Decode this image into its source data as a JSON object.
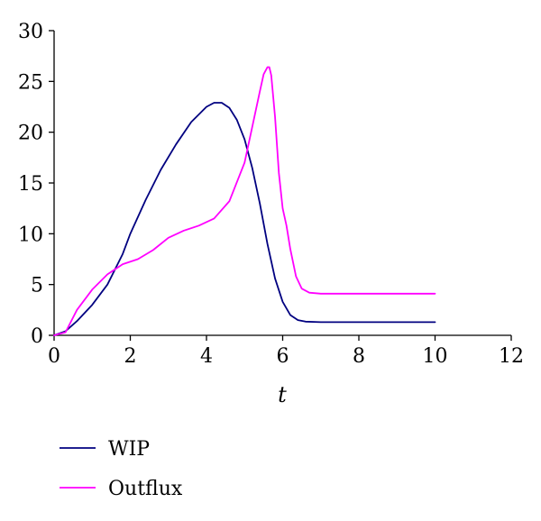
{
  "chart_data": {
    "type": "line",
    "title": "",
    "xlabel": "t",
    "ylabel": "",
    "xlim": [
      0,
      12
    ],
    "ylim": [
      0,
      30
    ],
    "xticks": [
      0,
      2,
      4,
      6,
      8,
      10,
      12
    ],
    "yticks": [
      0,
      5,
      10,
      15,
      20,
      25,
      30
    ],
    "grid": false,
    "legend": "bottom-left, below plot",
    "series": [
      {
        "name": "WIP",
        "color": "#000080",
        "x": [
          0,
          0.3,
          0.6,
          1.0,
          1.4,
          1.8,
          2.0,
          2.4,
          2.8,
          3.2,
          3.6,
          4.0,
          4.2,
          4.4,
          4.6,
          4.8,
          5.0,
          5.2,
          5.4,
          5.6,
          5.8,
          6.0,
          6.2,
          6.4,
          6.6,
          7.0,
          8.0,
          9.0,
          10.0
        ],
        "y": [
          0,
          0.4,
          1.4,
          3.0,
          5.0,
          8.0,
          10.0,
          13.3,
          16.3,
          18.8,
          21.0,
          22.5,
          22.9,
          22.9,
          22.4,
          21.2,
          19.3,
          16.5,
          13.0,
          9.0,
          5.6,
          3.3,
          2.0,
          1.5,
          1.35,
          1.3,
          1.3,
          1.3,
          1.3
        ]
      },
      {
        "name": "Outflux",
        "color": "#ff00ff",
        "x": [
          0,
          0.3,
          0.6,
          1.0,
          1.4,
          1.8,
          2.2,
          2.6,
          3.0,
          3.4,
          3.8,
          4.2,
          4.6,
          5.0,
          5.2,
          5.4,
          5.5,
          5.6,
          5.65,
          5.7,
          5.8,
          5.9,
          6.0,
          6.1,
          6.2,
          6.35,
          6.5,
          6.7,
          7.0,
          8.0,
          9.0,
          10.0
        ],
        "y": [
          0,
          0.3,
          2.5,
          4.5,
          6.0,
          7.0,
          7.5,
          8.4,
          9.6,
          10.3,
          10.8,
          11.5,
          13.2,
          17.0,
          20.5,
          24.0,
          25.7,
          26.4,
          26.4,
          25.6,
          21.5,
          16.0,
          12.5,
          10.8,
          8.5,
          5.8,
          4.6,
          4.2,
          4.1,
          4.1,
          4.1,
          4.1
        ]
      }
    ]
  }
}
